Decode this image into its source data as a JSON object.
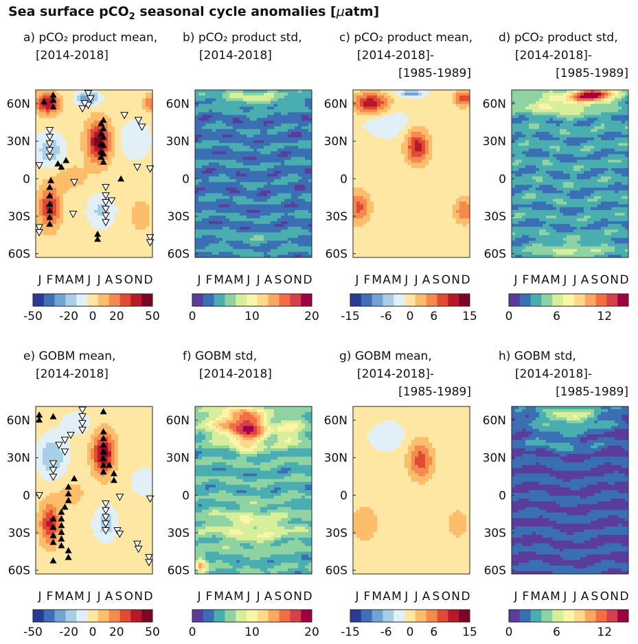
{
  "figure": {
    "title_prefix": "Sea surface pCO",
    "title_sub": "2",
    "title_suffix": " seasonal cycle anomalies [",
    "title_unit_mu": "μ",
    "title_unit_rest": "atm]"
  },
  "chart_data": [
    {
      "type": "heatmap",
      "panel": "a",
      "title_lines": [
        "a) pCO₂ product mean,",
        "[2014-2018]"
      ],
      "xticks": [
        "J",
        "F",
        "M",
        "A",
        "M",
        "J",
        "J",
        "A",
        "S",
        "O",
        "N",
        "D"
      ],
      "yticks": [
        "60N",
        "30N",
        "0",
        "30S",
        "60S"
      ],
      "ytick_values": [
        60,
        30,
        0,
        -30,
        -60
      ],
      "ylim": [
        -63,
        71
      ],
      "colorbar": {
        "ticks": [
          "-50",
          "-20",
          "0",
          "20",
          "50"
        ],
        "range": [
          -50,
          50
        ],
        "palette": "diverging"
      },
      "markers": true
    },
    {
      "type": "heatmap",
      "panel": "b",
      "title_lines": [
        "b) pCO₂ product std,",
        "[2014-2018]"
      ],
      "xticks": [
        "J",
        "F",
        "M",
        "A",
        "M",
        "J",
        "J",
        "A",
        "S",
        "O",
        "N",
        "D"
      ],
      "yticks": [
        "60N",
        "30N",
        "0",
        "30S",
        "60S"
      ],
      "ytick_values": [
        60,
        30,
        0,
        -30,
        -60
      ],
      "ylim": [
        -63,
        71
      ],
      "colorbar": {
        "ticks": [
          "0",
          "10",
          "20"
        ],
        "range": [
          0,
          20
        ],
        "palette": "spectral"
      }
    },
    {
      "type": "heatmap",
      "panel": "c",
      "title_lines": [
        "c) pCO₂ product mean,",
        "[2014-2018]-",
        "[1985-1989]"
      ],
      "xticks": [
        "J",
        "F",
        "M",
        "A",
        "M",
        "J",
        "J",
        "A",
        "S",
        "O",
        "N",
        "D"
      ],
      "yticks": [
        "60N",
        "30N",
        "0",
        "30S",
        "60S"
      ],
      "ytick_values": [
        60,
        30,
        0,
        -30,
        -60
      ],
      "ylim": [
        -63,
        71
      ],
      "colorbar": {
        "ticks": [
          "-15",
          "-6",
          "0",
          "6",
          "15"
        ],
        "range": [
          -15,
          15
        ],
        "palette": "diverging"
      }
    },
    {
      "type": "heatmap",
      "panel": "d",
      "title_lines": [
        "d) pCO₂ product std,",
        "[2014-2018]-",
        "[1985-1989]"
      ],
      "xticks": [
        "J",
        "F",
        "M",
        "A",
        "M",
        "J",
        "J",
        "A",
        "S",
        "O",
        "N",
        "D"
      ],
      "yticks": [
        "60N",
        "30N",
        "0",
        "30S",
        "60S"
      ],
      "ytick_values": [
        60,
        30,
        0,
        -30,
        -60
      ],
      "ylim": [
        -63,
        71
      ],
      "colorbar": {
        "ticks": [
          "0",
          "6",
          "12"
        ],
        "range": [
          0,
          15
        ],
        "palette": "spectral"
      }
    },
    {
      "type": "heatmap",
      "panel": "e",
      "title_lines": [
        "e) GOBM mean,",
        "[2014-2018]"
      ],
      "xticks": [
        "J",
        "F",
        "M",
        "A",
        "M",
        "J",
        "J",
        "A",
        "S",
        "O",
        "N",
        "D"
      ],
      "yticks": [
        "60N",
        "30N",
        "0",
        "30S",
        "60S"
      ],
      "ytick_values": [
        60,
        30,
        0,
        -30,
        -60
      ],
      "ylim": [
        -63,
        71
      ],
      "colorbar": {
        "ticks": [
          "-50",
          "-20",
          "0",
          "20",
          "50"
        ],
        "range": [
          -50,
          50
        ],
        "palette": "diverging"
      },
      "markers": true
    },
    {
      "type": "heatmap",
      "panel": "f",
      "title_lines": [
        "f) GOBM std,",
        "[2014-2018]"
      ],
      "xticks": [
        "J",
        "F",
        "M",
        "A",
        "M",
        "J",
        "J",
        "A",
        "S",
        "O",
        "N",
        "D"
      ],
      "yticks": [
        "60N",
        "30N",
        "0",
        "30S",
        "60S"
      ],
      "ytick_values": [
        60,
        30,
        0,
        -30,
        -60
      ],
      "ylim": [
        -63,
        71
      ],
      "colorbar": {
        "ticks": [
          "0",
          "10",
          "20"
        ],
        "range": [
          0,
          20
        ],
        "palette": "spectral"
      }
    },
    {
      "type": "heatmap",
      "panel": "g",
      "title_lines": [
        "g) GOBM mean,",
        "[2014-2018]-",
        "[1985-1989]"
      ],
      "xticks": [
        "J",
        "F",
        "M",
        "A",
        "M",
        "J",
        "J",
        "A",
        "S",
        "O",
        "N",
        "D"
      ],
      "yticks": [
        "60N",
        "30N",
        "0",
        "30S",
        "60S"
      ],
      "ytick_values": [
        60,
        30,
        0,
        -30,
        -60
      ],
      "ylim": [
        -63,
        71
      ],
      "colorbar": {
        "ticks": [
          "-15",
          "-6",
          "0",
          "6",
          "15"
        ],
        "range": [
          -15,
          15
        ],
        "palette": "diverging"
      }
    },
    {
      "type": "heatmap",
      "panel": "h",
      "title_lines": [
        "h) GOBM std,",
        "[2014-2018]-",
        "[1985-1989]"
      ],
      "xticks": [
        "J",
        "F",
        "M",
        "A",
        "M",
        "J",
        "J",
        "A",
        "S",
        "O",
        "N",
        "D"
      ],
      "yticks": [
        "60N",
        "30N",
        "0",
        "30S",
        "60S"
      ],
      "ytick_values": [
        60,
        30,
        0,
        -30,
        -60
      ],
      "ylim": [
        -63,
        71
      ],
      "colorbar": {
        "ticks": [
          "0",
          "6",
          "12"
        ],
        "range": [
          0,
          15
        ],
        "palette": "spectral"
      }
    }
  ],
  "palettes": {
    "diverging": [
      "#2b3a95",
      "#3f6fb6",
      "#72a3d2",
      "#a9cfe6",
      "#e1f0f7",
      "#fde7a3",
      "#fdbd6b",
      "#f68a4e",
      "#e14a33",
      "#b5192a",
      "#7d0525"
    ],
    "spectral": [
      "#5a3d9a",
      "#3a6fb4",
      "#4aaeb0",
      "#8fd3a3",
      "#d7ee9b",
      "#fbf5a8",
      "#fed98a",
      "#fca863",
      "#f46d43",
      "#d6404e",
      "#9e0142"
    ]
  }
}
